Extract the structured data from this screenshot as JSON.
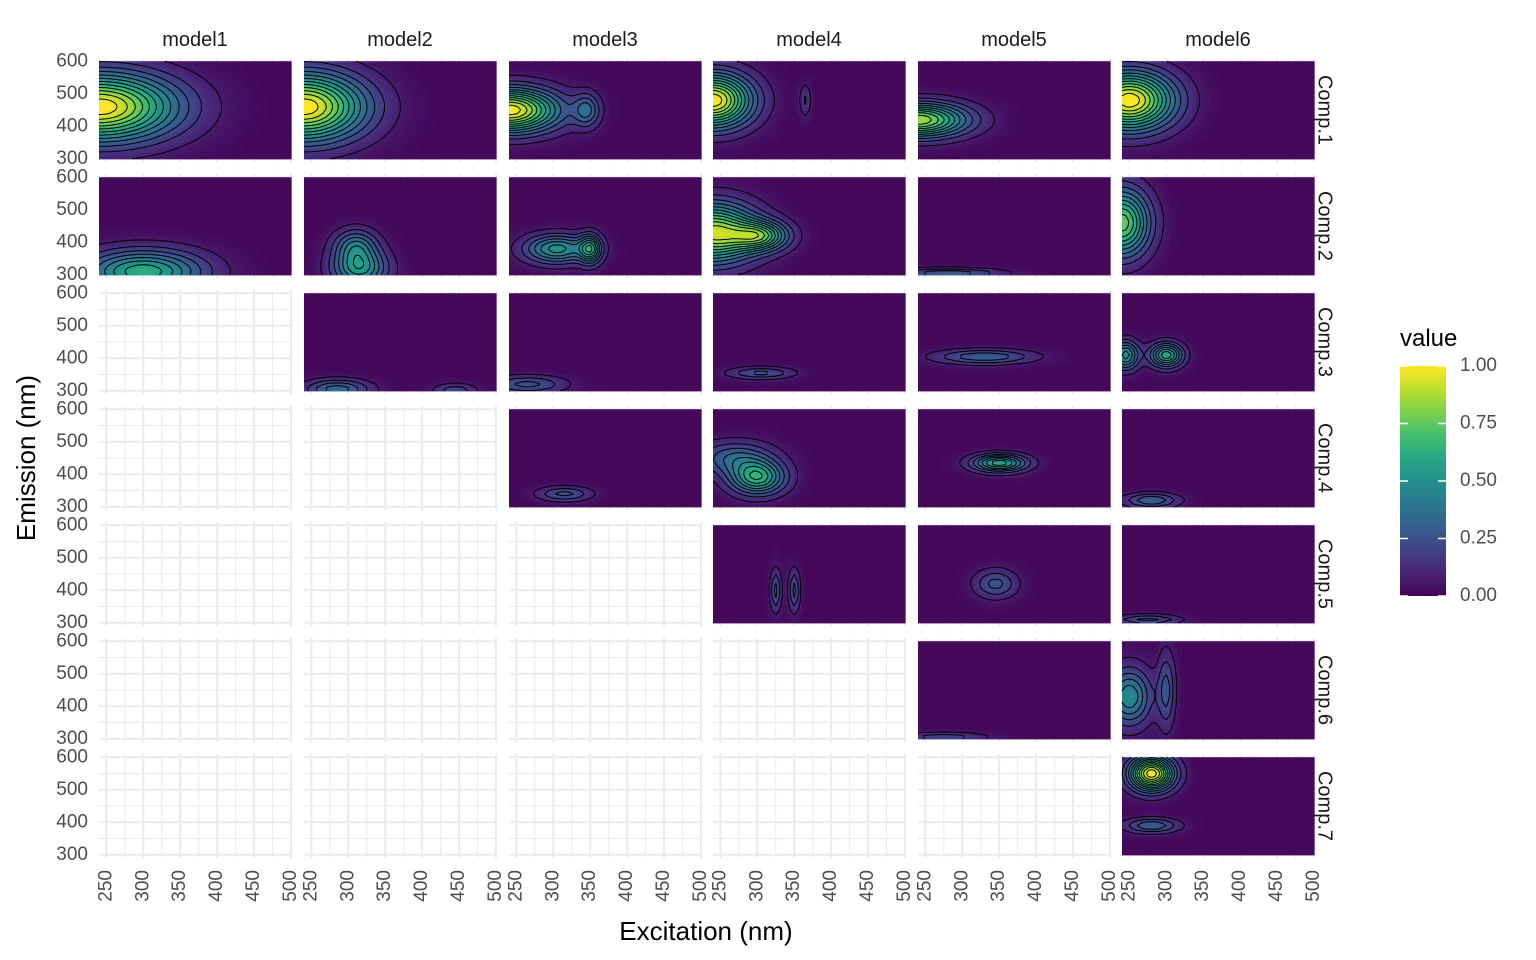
{
  "chart_data": {
    "type": "heatmap",
    "title": "",
    "xlabel": "Excitation (nm)",
    "ylabel": "Emission (nm)",
    "xlim": [
      240,
      500
    ],
    "ylim": [
      290,
      610
    ],
    "x_ticks": [
      "250",
      "300",
      "350",
      "400",
      "450",
      "500"
    ],
    "x_tick_values": [
      250,
      300,
      350,
      400,
      450,
      500
    ],
    "y_ticks": [
      "300",
      "400",
      "500",
      "600"
    ],
    "y_tick_values": [
      300,
      400,
      500,
      600
    ],
    "data_extent": {
      "ex": [
        240,
        500
      ],
      "em": [
        300,
        600
      ]
    },
    "facet_columns": [
      "model1",
      "model2",
      "model3",
      "model4",
      "model5",
      "model6"
    ],
    "facet_rows": [
      "Comp.1",
      "Comp.2",
      "Comp.3",
      "Comp.4",
      "Comp.5",
      "Comp.6",
      "Comp.7"
    ],
    "components_per_model": [
      2,
      3,
      4,
      5,
      6,
      7
    ],
    "grid": true,
    "contours": true,
    "colormap": "viridis",
    "colors": {
      "viridis": [
        "#440154",
        "#482878",
        "#3e4989",
        "#31688e",
        "#26828e",
        "#1f9e89",
        "#35b779",
        "#6ece58",
        "#b5de2b",
        "#fde725"
      ],
      "grid": "#ebebeb",
      "contour": "#000000"
    },
    "legend": {
      "title": "value",
      "position": "right",
      "range": [
        0,
        1
      ],
      "ticks": [
        "0.00",
        "0.25",
        "0.50",
        "0.75",
        "1.00"
      ],
      "tick_values": [
        0,
        0.25,
        0.5,
        0.75,
        1
      ]
    },
    "peaks": [
      {
        "model": "model1",
        "comp": "Comp.1",
        "blobs": [
          {
            "ex": 240,
            "em": 460,
            "sx": 70,
            "sy": 70,
            "a": 1.0
          }
        ]
      },
      {
        "model": "model1",
        "comp": "Comp.2",
        "blobs": [
          {
            "ex": 300,
            "em": 310,
            "sx": 55,
            "sy": 45,
            "a": 0.6
          }
        ]
      },
      {
        "model": "model2",
        "comp": "Comp.1",
        "blobs": [
          {
            "ex": 240,
            "em": 460,
            "sx": 55,
            "sy": 70,
            "a": 1.0
          }
        ]
      },
      {
        "model": "model2",
        "comp": "Comp.2",
        "blobs": [
          {
            "ex": 315,
            "em": 320,
            "sx": 25,
            "sy": 40,
            "a": 0.5
          },
          {
            "ex": 310,
            "em": 390,
            "sx": 20,
            "sy": 35,
            "a": 0.35
          }
        ]
      },
      {
        "model": "model2",
        "comp": "Comp.3",
        "blobs": [
          {
            "ex": 285,
            "em": 305,
            "sx": 30,
            "sy": 20,
            "a": 0.35
          },
          {
            "ex": 445,
            "em": 300,
            "sx": 20,
            "sy": 15,
            "a": 0.2
          }
        ]
      },
      {
        "model": "model3",
        "comp": "Comp.1",
        "blobs": [
          {
            "ex": 240,
            "em": 450,
            "sx": 45,
            "sy": 45,
            "a": 1.0
          },
          {
            "ex": 345,
            "em": 450,
            "sx": 12,
            "sy": 35,
            "a": 0.3
          }
        ]
      },
      {
        "model": "model3",
        "comp": "Comp.2",
        "blobs": [
          {
            "ex": 305,
            "em": 380,
            "sx": 30,
            "sy": 30,
            "a": 0.5
          },
          {
            "ex": 350,
            "em": 380,
            "sx": 10,
            "sy": 30,
            "a": 0.5
          }
        ]
      },
      {
        "model": "model3",
        "comp": "Comp.3",
        "blobs": [
          {
            "ex": 265,
            "em": 320,
            "sx": 35,
            "sy": 18,
            "a": 0.25
          }
        ]
      },
      {
        "model": "model3",
        "comp": "Comp.4",
        "blobs": [
          {
            "ex": 315,
            "em": 340,
            "sx": 25,
            "sy": 15,
            "a": 0.25
          }
        ]
      },
      {
        "model": "model4",
        "comp": "Comp.1",
        "blobs": [
          {
            "ex": 240,
            "em": 480,
            "sx": 35,
            "sy": 55,
            "a": 1.0
          },
          {
            "ex": 365,
            "em": 480,
            "sx": 5,
            "sy": 35,
            "a": 0.15
          }
        ]
      },
      {
        "model": "model4",
        "comp": "Comp.2",
        "blobs": [
          {
            "ex": 240,
            "em": 430,
            "sx": 40,
            "sy": 60,
            "a": 0.9
          },
          {
            "ex": 305,
            "em": 420,
            "sx": 25,
            "sy": 30,
            "a": 0.6
          }
        ]
      },
      {
        "model": "model4",
        "comp": "Comp.3",
        "blobs": [
          {
            "ex": 305,
            "em": 355,
            "sx": 30,
            "sy": 12,
            "a": 0.25
          }
        ]
      },
      {
        "model": "model4",
        "comp": "Comp.4",
        "blobs": [
          {
            "ex": 300,
            "em": 390,
            "sx": 25,
            "sy": 35,
            "a": 0.6
          },
          {
            "ex": 270,
            "em": 450,
            "sx": 35,
            "sy": 35,
            "a": 0.3
          }
        ]
      },
      {
        "model": "model4",
        "comp": "Comp.5",
        "blobs": [
          {
            "ex": 325,
            "em": 400,
            "sx": 5,
            "sy": 45,
            "a": 0.25
          },
          {
            "ex": 350,
            "em": 400,
            "sx": 5,
            "sy": 45,
            "a": 0.25
          }
        ]
      },
      {
        "model": "model5",
        "comp": "Comp.1",
        "blobs": [
          {
            "ex": 240,
            "em": 420,
            "sx": 45,
            "sy": 35,
            "a": 0.85
          }
        ]
      },
      {
        "model": "model5",
        "comp": "Comp.2",
        "blobs": [
          {
            "ex": 280,
            "em": 305,
            "sx": 50,
            "sy": 10,
            "a": 0.3
          }
        ]
      },
      {
        "model": "model5",
        "comp": "Comp.3",
        "blobs": [
          {
            "ex": 330,
            "em": 405,
            "sx": 45,
            "sy": 15,
            "a": 0.3
          }
        ]
      },
      {
        "model": "model5",
        "comp": "Comp.4",
        "blobs": [
          {
            "ex": 350,
            "em": 435,
            "sx": 25,
            "sy": 18,
            "a": 0.6
          }
        ]
      },
      {
        "model": "model5",
        "comp": "Comp.5",
        "blobs": [
          {
            "ex": 345,
            "em": 420,
            "sx": 20,
            "sy": 30,
            "a": 0.25
          }
        ]
      },
      {
        "model": "model5",
        "comp": "Comp.6",
        "blobs": [
          {
            "ex": 275,
            "em": 305,
            "sx": 40,
            "sy": 10,
            "a": 0.2
          }
        ]
      },
      {
        "model": "model6",
        "comp": "Comp.1",
        "blobs": [
          {
            "ex": 250,
            "em": 480,
            "sx": 40,
            "sy": 60,
            "a": 1.0
          }
        ]
      },
      {
        "model": "model6",
        "comp": "Comp.2",
        "blobs": [
          {
            "ex": 240,
            "em": 460,
            "sx": 25,
            "sy": 70,
            "a": 0.75
          }
        ]
      },
      {
        "model": "model6",
        "comp": "Comp.3",
        "blobs": [
          {
            "ex": 300,
            "em": 410,
            "sx": 15,
            "sy": 25,
            "a": 0.6
          },
          {
            "ex": 245,
            "em": 410,
            "sx": 12,
            "sy": 30,
            "a": 0.5
          }
        ]
      },
      {
        "model": "model6",
        "comp": "Comp.4",
        "blobs": [
          {
            "ex": 280,
            "em": 320,
            "sx": 25,
            "sy": 15,
            "a": 0.3
          }
        ]
      },
      {
        "model": "model6",
        "comp": "Comp.5",
        "blobs": [
          {
            "ex": 275,
            "em": 310,
            "sx": 30,
            "sy": 10,
            "a": 0.25
          }
        ]
      },
      {
        "model": "model6",
        "comp": "Comp.6",
        "blobs": [
          {
            "ex": 250,
            "em": 430,
            "sx": 20,
            "sy": 60,
            "a": 0.45
          },
          {
            "ex": 300,
            "em": 450,
            "sx": 8,
            "sy": 80,
            "a": 0.25
          }
        ]
      },
      {
        "model": "model6",
        "comp": "Comp.7",
        "blobs": [
          {
            "ex": 280,
            "em": 550,
            "sx": 20,
            "sy": 35,
            "a": 1.0
          },
          {
            "ex": 280,
            "em": 390,
            "sx": 25,
            "sy": 15,
            "a": 0.3
          }
        ]
      }
    ]
  }
}
